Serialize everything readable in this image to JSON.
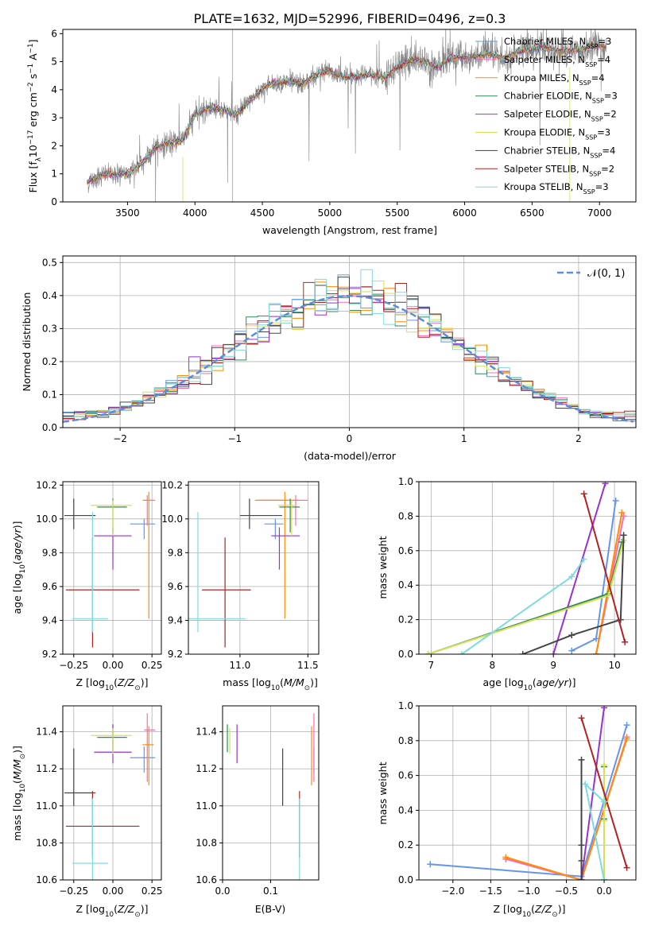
{
  "figure_title": "PLATE=1632, MJD=52996, FIBERID=0496, z=0.3",
  "chart_data": [
    {
      "type": "line",
      "id": "spectrum",
      "xlabel": "wavelength [Angstrom, rest frame]",
      "ylabel": "Flux [f_λ 10^-17 erg cm^-2 s^-1 A^-1]",
      "xlim": [
        3020,
        7270
      ],
      "ylim": [
        0,
        6.15
      ],
      "xticks": [
        3500,
        4000,
        4500,
        5000,
        5500,
        6000,
        6500,
        7000
      ],
      "yticks": [
        0,
        1,
        2,
        3,
        4,
        5,
        6
      ],
      "grid": false,
      "legend": "top-right",
      "data_trend": {
        "x": [
          3200,
          3300,
          3400,
          3500,
          3600,
          3700,
          3800,
          3900,
          3950,
          4000,
          4100,
          4200,
          4300,
          4400,
          4500,
          4600,
          4700,
          4800,
          4900,
          5000,
          5100,
          5200,
          5300,
          5400,
          5500,
          5600,
          5700,
          5800,
          5900,
          6000,
          6100,
          6200,
          6300,
          6400,
          6500,
          6600,
          6700,
          6800,
          6900,
          7000,
          7050
        ],
        "y": [
          0.7,
          0.95,
          1.0,
          1.0,
          1.35,
          1.9,
          2.1,
          2.15,
          2.6,
          3.1,
          3.35,
          3.3,
          3.1,
          3.55,
          4.05,
          4.25,
          4.3,
          4.2,
          4.55,
          4.65,
          4.45,
          4.45,
          4.55,
          4.4,
          4.8,
          5.05,
          5.0,
          4.8,
          5.15,
          5.15,
          5.2,
          5.25,
          5.1,
          5.35,
          5.45,
          5.5,
          5.4,
          5.4,
          5.5,
          5.55,
          5.5
        ]
      },
      "series": [
        {
          "name": "Chabrier MILES, N_SSP=3",
          "color": "#6495ED"
        },
        {
          "name": "Salpeter MILES, N_SSP=4",
          "color": "#FF69B4"
        },
        {
          "name": "Kroupa MILES, N_SSP=4",
          "color": "#FF8C00"
        },
        {
          "name": "Chabrier ELODIE, N_SSP=3",
          "color": "#2E8B57"
        },
        {
          "name": "Salpeter ELODIE, N_SSP=2",
          "color": "#9932CC"
        },
        {
          "name": "Kroupa ELODIE, N_SSP=3",
          "color": "#D4E157"
        },
        {
          "name": "Chabrier STELIB, N_SSP=4",
          "color": "#444444"
        },
        {
          "name": "Salpeter STELIB, N_SSP=2",
          "color": "#B22222"
        },
        {
          "name": "Kroupa STELIB, N_SSP=3",
          "color": "#7FDBDB"
        }
      ],
      "data_color": "#808080"
    },
    {
      "type": "line",
      "id": "residuals",
      "xlabel": "(data-model)/error",
      "ylabel": "Normed distribution",
      "xlim": [
        -2.5,
        2.5
      ],
      "ylim": [
        0,
        0.52
      ],
      "xticks": [
        -2,
        -1,
        0,
        1,
        2
      ],
      "yticks": [
        0.0,
        0.1,
        0.2,
        0.3,
        0.4,
        0.5
      ],
      "grid": true,
      "legend": "top-right",
      "reference": {
        "name": "𝒩(0, 1)",
        "color": "#5B8DD9"
      }
    },
    {
      "type": "scatter",
      "id": "age_vs_Z",
      "xlabel": "Z [log10(Z/Z⊙)]",
      "ylabel": "age [log10(age/yr)]",
      "xlim": [
        -0.32,
        0.31
      ],
      "ylim": [
        9.2,
        10.22
      ],
      "xticks": [
        -0.25,
        0.0,
        0.25
      ],
      "yticks": [
        9.2,
        9.4,
        9.6,
        9.8,
        10.0,
        10.2
      ],
      "grid": true
    },
    {
      "type": "scatter",
      "id": "age_vs_mass",
      "xlabel": "mass [log10(M/M⊙)]",
      "ylabel": "",
      "xlim": [
        10.62,
        11.58
      ],
      "ylim": [
        9.2,
        10.22
      ],
      "xticks": [
        11.0,
        11.5
      ],
      "yticks": [
        9.2,
        9.4,
        9.6,
        9.8,
        10.0,
        10.2
      ],
      "grid": true
    },
    {
      "type": "line",
      "id": "weight_vs_age",
      "xlabel": "age [log10(age/yr)]",
      "ylabel": "mass weight",
      "xlim": [
        6.8,
        10.35
      ],
      "ylim": [
        0,
        1.0
      ],
      "xticks": [
        7,
        8,
        9,
        10
      ],
      "yticks": [
        0.0,
        0.2,
        0.4,
        0.6,
        0.8,
        1.0
      ],
      "grid": true
    },
    {
      "type": "scatter",
      "id": "mass_vs_Z",
      "xlabel": "Z [log10(Z/Z⊙)]",
      "ylabel": "mass [log10(M/M⊙)]",
      "xlim": [
        -0.32,
        0.31
      ],
      "ylim": [
        10.6,
        11.54
      ],
      "xticks": [
        -0.25,
        0.0,
        0.25
      ],
      "yticks": [
        10.6,
        10.8,
        11.0,
        11.2,
        11.4
      ],
      "grid": true
    },
    {
      "type": "scatter",
      "id": "mass_vs_ebv",
      "xlabel": "E(B-V)",
      "ylabel": "",
      "xlim": [
        0.0,
        0.2
      ],
      "ylim": [
        10.6,
        11.54
      ],
      "xticks": [
        0.0,
        0.1
      ],
      "yticks": [
        10.6,
        10.8,
        11.0,
        11.2,
        11.4
      ],
      "grid": true
    },
    {
      "type": "line",
      "id": "weight_vs_Z",
      "xlabel": "Z [log10(Z/Z⊙)]",
      "ylabel": "mass weight",
      "xlim": [
        -2.45,
        0.42
      ],
      "ylim": [
        0,
        1.0
      ],
      "xticks": [
        -2.0,
        -1.5,
        -1.0,
        -0.5,
        0.0
      ],
      "yticks": [
        0.0,
        0.2,
        0.4,
        0.6,
        0.8,
        1.0
      ],
      "grid": true
    }
  ]
}
